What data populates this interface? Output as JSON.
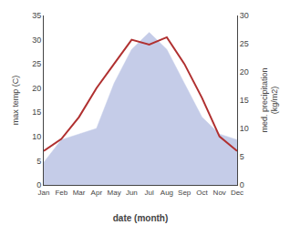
{
  "chart_data": {
    "type": "line",
    "xlabel": "date (month)",
    "ylabel": "max temp (C)",
    "y2label": "med. precipitation\n(kg/m2)",
    "categories": [
      "Jan",
      "Feb",
      "Mar",
      "Apr",
      "May",
      "Jun",
      "Jul",
      "Aug",
      "Sep",
      "Oct",
      "Nov",
      "Dec"
    ],
    "series": [
      {
        "type": "area",
        "axis": "y2",
        "color": "#c5cce8",
        "values": [
          4,
          8,
          9,
          10,
          18,
          24,
          27,
          24,
          18,
          12,
          9,
          8
        ]
      },
      {
        "type": "line",
        "color": "#b03030",
        "values": [
          7,
          9.5,
          14,
          20,
          25,
          30,
          29,
          30.5,
          25,
          18,
          10,
          7
        ]
      }
    ],
    "ylim": [
      0,
      35
    ],
    "yticks": [
      0,
      5,
      10,
      15,
      20,
      25,
      30,
      35
    ],
    "y2lim": [
      0,
      30
    ],
    "y2ticks": [
      0,
      5,
      10,
      15,
      20,
      25,
      30
    ],
    "grid": false
  }
}
